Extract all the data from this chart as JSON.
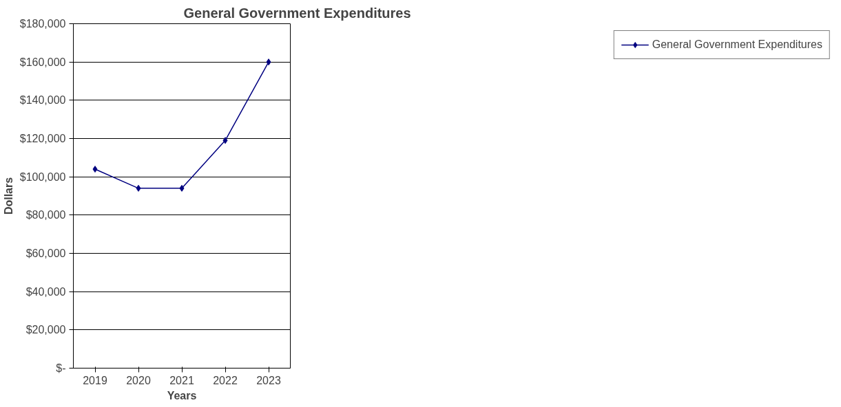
{
  "chart_data": {
    "type": "line",
    "title": "General Government Expenditures",
    "xlabel": "Years",
    "ylabel": "Dollars",
    "categories": [
      "2019",
      "2020",
      "2021",
      "2022",
      "2023"
    ],
    "series": [
      {
        "name": "General Government Expenditures",
        "color": "#000080",
        "values": [
          104000,
          94000,
          94000,
          119000,
          160000
        ]
      }
    ],
    "ylim": [
      0,
      180000
    ],
    "yticks": [
      {
        "value": 0,
        "label": "$-"
      },
      {
        "value": 20000,
        "label": "$20,000"
      },
      {
        "value": 40000,
        "label": "$40,000"
      },
      {
        "value": 60000,
        "label": "$60,000"
      },
      {
        "value": 80000,
        "label": "$80,000"
      },
      {
        "value": 100000,
        "label": "$100,000"
      },
      {
        "value": 120000,
        "label": "$120,000"
      },
      {
        "value": 140000,
        "label": "$140,000"
      },
      {
        "value": 160000,
        "label": "$160,000"
      },
      {
        "value": 180000,
        "label": "$180,000"
      }
    ],
    "grid": "y",
    "legend": "right",
    "marker": "diamond",
    "line_style": "solid"
  }
}
